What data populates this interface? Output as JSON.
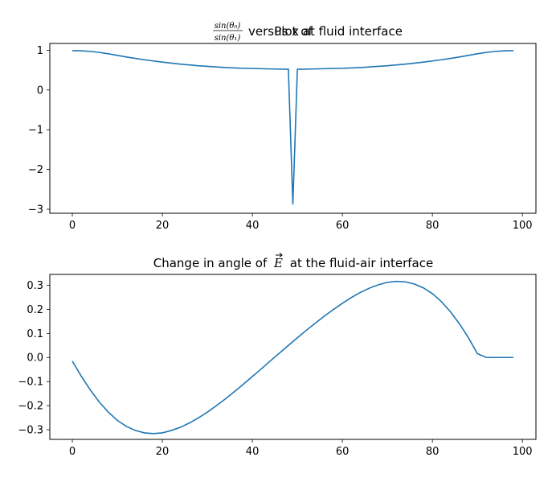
{
  "chart_data": [
    {
      "type": "line",
      "title_prefix": "Plot of",
      "title_fraction_numerator": "sin(θ₀)",
      "title_fraction_denominator": "sin(θ₁)",
      "title_suffix": "versus x at fluid interface",
      "xlim": [
        -5,
        103
      ],
      "ylim": [
        -3.1,
        1.17
      ],
      "xticks": [
        0,
        20,
        40,
        60,
        80,
        100
      ],
      "yticks": [
        1,
        0,
        -1,
        -2,
        -3
      ],
      "xtick_labels": [
        "0",
        "20",
        "40",
        "60",
        "80",
        "100"
      ],
      "ytick_labels": [
        "1",
        "0",
        "−1",
        "−2",
        "−3"
      ],
      "color": "#1f77b4",
      "x": [
        0,
        2,
        4,
        6,
        8,
        10,
        12,
        14,
        16,
        18,
        20,
        22,
        24,
        26,
        28,
        30,
        32,
        34,
        36,
        38,
        40,
        42,
        44,
        46,
        48,
        49,
        50,
        52,
        54,
        56,
        58,
        60,
        62,
        64,
        66,
        68,
        70,
        72,
        74,
        76,
        78,
        80,
        82,
        84,
        86,
        88,
        90,
        92,
        94,
        96,
        98
      ],
      "y": [
        0.99,
        0.985,
        0.97,
        0.945,
        0.91,
        0.87,
        0.83,
        0.795,
        0.76,
        0.73,
        0.7,
        0.675,
        0.65,
        0.63,
        0.61,
        0.595,
        0.58,
        0.565,
        0.555,
        0.545,
        0.54,
        0.535,
        0.53,
        0.525,
        0.522,
        -2.88,
        0.522,
        0.525,
        0.53,
        0.535,
        0.54,
        0.545,
        0.555,
        0.565,
        0.58,
        0.595,
        0.61,
        0.63,
        0.65,
        0.675,
        0.7,
        0.73,
        0.76,
        0.795,
        0.83,
        0.87,
        0.91,
        0.945,
        0.97,
        0.985,
        0.99
      ]
    },
    {
      "type": "line",
      "title_prefix": "Change in angle of",
      "title_symbol": "E",
      "title_suffix": "at the fluid-air interface",
      "xlim": [
        -5,
        103
      ],
      "ylim": [
        -0.34,
        0.345
      ],
      "xticks": [
        0,
        20,
        40,
        60,
        80,
        100
      ],
      "yticks": [
        0.3,
        0.2,
        0.1,
        0.0,
        -0.1,
        -0.2,
        -0.3
      ],
      "xtick_labels": [
        "0",
        "20",
        "40",
        "60",
        "80",
        "100"
      ],
      "ytick_labels": [
        "0.3",
        "0.2",
        "0.1",
        "0.0",
        "−0.1",
        "−0.2",
        "−0.3"
      ],
      "color": "#1f77b4",
      "x": [
        0,
        2,
        4,
        6,
        8,
        10,
        12,
        14,
        16,
        18,
        20,
        22,
        24,
        26,
        28,
        30,
        32,
        34,
        36,
        38,
        40,
        42,
        44,
        46,
        48,
        50,
        52,
        54,
        56,
        58,
        60,
        62,
        64,
        66,
        68,
        70,
        72,
        74,
        76,
        78,
        80,
        82,
        84,
        86,
        88,
        90,
        92,
        94,
        96,
        98
      ],
      "y": [
        -0.015,
        -0.078,
        -0.135,
        -0.185,
        -0.227,
        -0.261,
        -0.286,
        -0.303,
        -0.313,
        -0.316,
        -0.313,
        -0.303,
        -0.29,
        -0.272,
        -0.251,
        -0.227,
        -0.2,
        -0.172,
        -0.142,
        -0.111,
        -0.079,
        -0.047,
        -0.014,
        0.018,
        0.05,
        0.082,
        0.113,
        0.143,
        0.172,
        0.199,
        0.225,
        0.249,
        0.27,
        0.288,
        0.302,
        0.312,
        0.316,
        0.314,
        0.305,
        0.289,
        0.265,
        0.232,
        0.19,
        0.14,
        0.082,
        0.016,
        0.0,
        0.0,
        0.0,
        0.0
      ]
    }
  ]
}
